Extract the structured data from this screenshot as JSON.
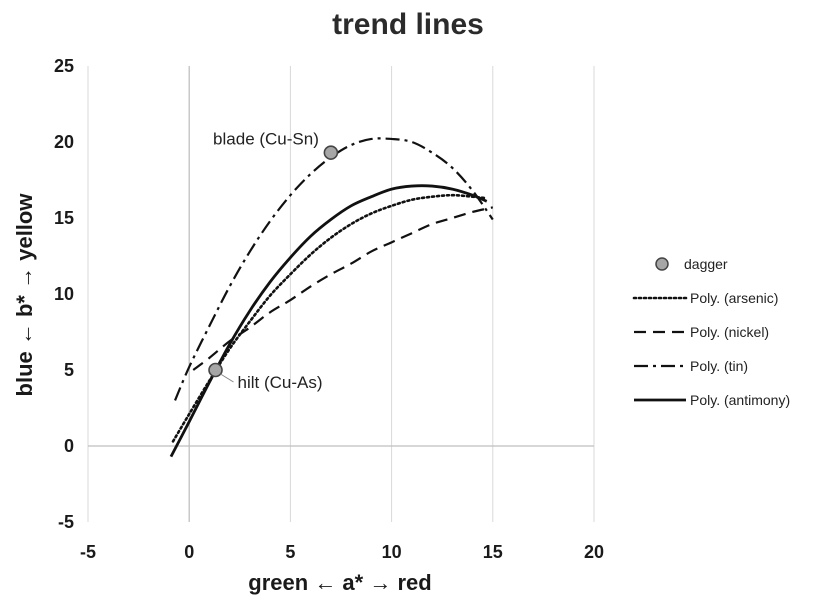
{
  "chart_data": {
    "type": "scatter",
    "title": "trend lines",
    "xlabel": "green ← a* → red",
    "ylabel": "blue ← b* → yellow",
    "xlim": [
      -5,
      20
    ],
    "ylim": [
      -5,
      25
    ],
    "x_ticks": [
      "-5",
      "0",
      "5",
      "10",
      "15",
      "20"
    ],
    "y_ticks": [
      "-5",
      "0",
      "5",
      "10",
      "15",
      "20",
      "25"
    ],
    "grid": "vertical",
    "legend_position": "right",
    "series": [
      {
        "name": "dagger",
        "kind": "points",
        "color": "#a6a6a6",
        "points": [
          {
            "x": 1.3,
            "y": 5.0,
            "label": "hilt (Cu-As)"
          },
          {
            "x": 7.0,
            "y": 19.3,
            "label": "blade (Cu-Sn)"
          }
        ]
      },
      {
        "name": "Poly. (arsenic)",
        "kind": "curve",
        "style": "dotted",
        "x": [
          -0.8,
          0,
          1,
          2,
          3,
          4,
          5,
          6,
          7,
          8,
          9,
          10,
          11,
          12,
          13,
          14,
          14.7
        ],
        "y": [
          0.3,
          2.1,
          4.3,
          6.4,
          8.2,
          9.9,
          11.3,
          12.6,
          13.7,
          14.6,
          15.3,
          15.8,
          16.2,
          16.4,
          16.5,
          16.4,
          16.3
        ]
      },
      {
        "name": "Poly. (nickel)",
        "kind": "curve",
        "style": "dashed",
        "x": [
          0.2,
          1,
          2,
          3,
          4,
          5,
          6,
          7,
          8,
          9,
          10,
          11,
          12,
          13,
          14,
          15
        ],
        "y": [
          5.0,
          5.8,
          6.9,
          7.8,
          8.8,
          9.6,
          10.5,
          11.3,
          12.0,
          12.8,
          13.4,
          14.0,
          14.6,
          15.0,
          15.4,
          15.7
        ]
      },
      {
        "name": "Poly. (tin)",
        "kind": "curve",
        "style": "dashdot",
        "x": [
          -0.7,
          0,
          1,
          2,
          3,
          4,
          5,
          6,
          7,
          8,
          9,
          10,
          11,
          12,
          13,
          14,
          15
        ],
        "y": [
          3.0,
          5.2,
          7.9,
          10.5,
          12.8,
          14.8,
          16.5,
          17.9,
          19.0,
          19.8,
          20.2,
          20.2,
          20.0,
          19.3,
          18.3,
          16.8,
          14.9
        ]
      },
      {
        "name": "Poly. (antimony)",
        "kind": "curve",
        "style": "solid",
        "x": [
          -0.9,
          0,
          1,
          2,
          3,
          4,
          5,
          6,
          7,
          8,
          9,
          10,
          11,
          12,
          13,
          14,
          14.7
        ],
        "y": [
          -0.7,
          1.6,
          4.2,
          6.7,
          8.9,
          10.8,
          12.4,
          13.8,
          14.9,
          15.8,
          16.4,
          16.9,
          17.1,
          17.1,
          16.9,
          16.5,
          16.1
        ]
      }
    ]
  }
}
